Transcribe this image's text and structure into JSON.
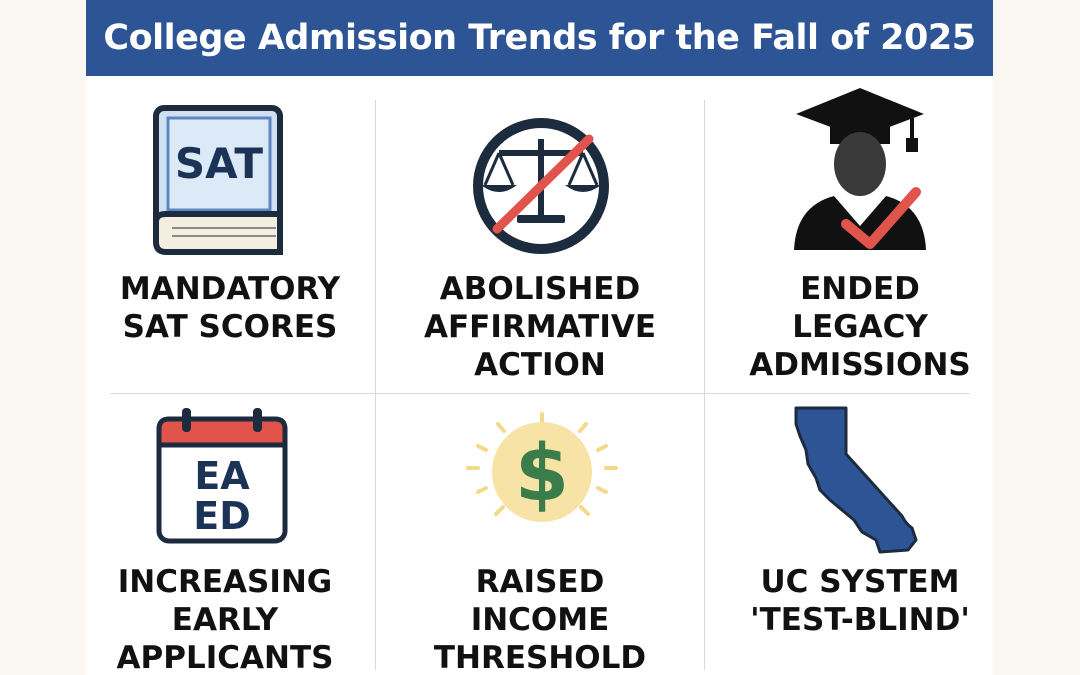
{
  "banner": {
    "title": "College Admission Trends for the Fall of 2025",
    "color": "#2d5596"
  },
  "icons": {
    "sat_book": {
      "icon": "sat-book-icon",
      "text": "SAT"
    },
    "calendar": {
      "icon": "calendar-icon",
      "lines": [
        "EA",
        "ED"
      ]
    },
    "scales": {
      "icon": "crossed-out-scales-icon"
    },
    "dollar": {
      "icon": "dollar-coin-icon",
      "symbol": "$"
    },
    "graduate": {
      "icon": "graduate-checkmark-icon"
    },
    "california": {
      "icon": "california-map-icon"
    }
  },
  "items": [
    {
      "lines": [
        "MANDATORY",
        "SAT SCORES"
      ]
    },
    {
      "lines": [
        "ABOLISHED",
        "AFFIRMATIVE",
        "ACTION"
      ]
    },
    {
      "lines": [
        "ENDED",
        "LEGACY",
        "ADMISSIONS"
      ]
    },
    {
      "lines": [
        "INCREASING",
        "EARLY",
        "APPLICANTS"
      ]
    },
    {
      "lines": [
        "RAISED",
        "INCOME",
        "THRESHOLD"
      ]
    },
    {
      "lines": [
        "UC SYSTEM",
        "'TEST-BLIND'"
      ]
    }
  ],
  "colors": {
    "navy": "#2d5596",
    "red": "#e0544b",
    "green": "#3b7d4a",
    "gold": "#f7e3a6",
    "dark": "#1c2b3d"
  }
}
